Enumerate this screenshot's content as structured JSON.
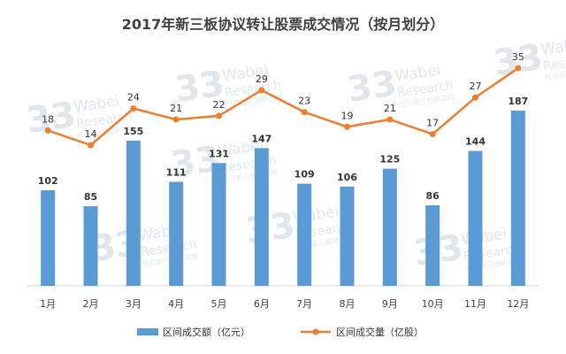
{
  "chart_data": {
    "type": "bar",
    "title": "2017年新三板协议转让股票成交情况（按月划分）",
    "categories": [
      "1月",
      "2月",
      "3月",
      "4月",
      "5月",
      "6月",
      "7月",
      "8月",
      "9月",
      "10月",
      "11月",
      "12月"
    ],
    "series": [
      {
        "name": "区间成交额（亿元）",
        "type": "bar",
        "color": "#5b9bd5",
        "values": [
          102,
          85,
          155,
          111,
          131,
          147,
          109,
          106,
          125,
          86,
          144,
          187
        ]
      },
      {
        "name": "区间成交量（亿股）",
        "type": "line",
        "color": "#ed7d31",
        "values": [
          18,
          14,
          24,
          21,
          22,
          29,
          23,
          19,
          21,
          17,
          27,
          35
        ]
      }
    ],
    "legend_position": "bottom",
    "grid": false
  },
  "watermark": {
    "logo": "33",
    "lines": [
      "Wabei",
      "Research",
      "挖贝新三板研究院"
    ]
  }
}
